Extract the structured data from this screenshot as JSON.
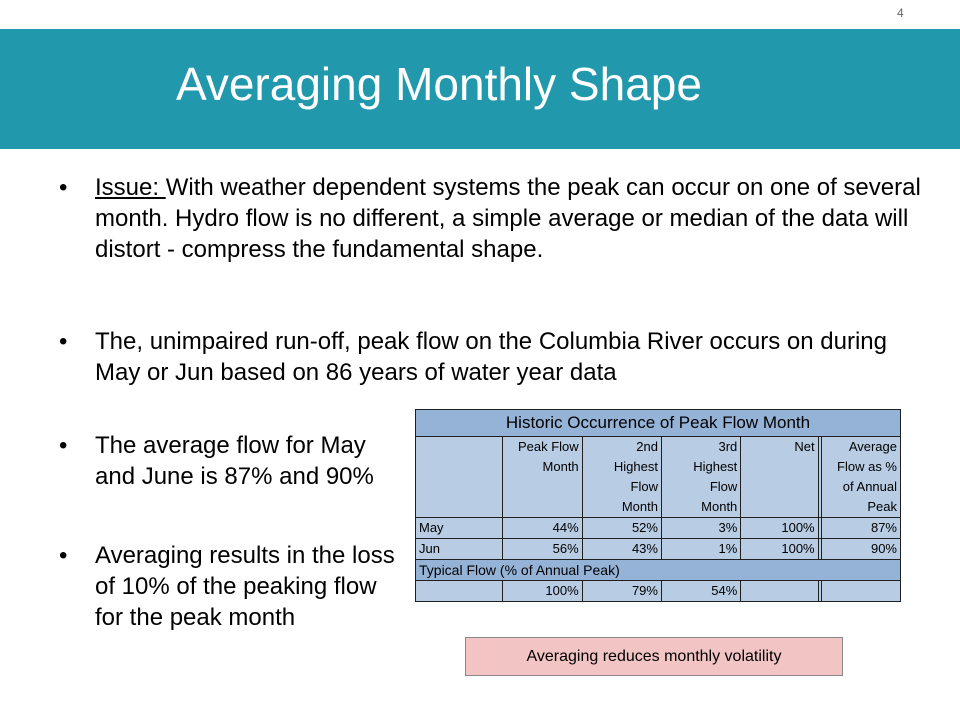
{
  "slide_number": "4",
  "title": "Averaging Monthly Shape",
  "bullets": {
    "b1_label": "Issue: ",
    "b1_text": "With weather dependent systems the peak can occur on one of several month. Hydro flow is no different, a simple average or median of the data will distort - compress the fundamental shape.",
    "b2_text": "The, unimpaired run-off, peak flow on the Columbia River occurs on during May or Jun based on 86 years of water year data",
    "b3_text": "The average flow for May and June is 87% and 90%",
    "b4_text": "Averaging results in the loss of 10% of the peaking flow for the peak month"
  },
  "table": {
    "title": "Historic Occurrence of Peak Flow Month",
    "headers": [
      [
        "Peak Flow",
        "Month",
        "",
        ""
      ],
      [
        "2nd",
        "Highest",
        "Flow",
        "Month"
      ],
      [
        "3rd",
        "Highest",
        "Flow",
        "Month"
      ],
      [
        "Net",
        "",
        "",
        ""
      ],
      [
        "Average",
        "Flow as %",
        "of Annual",
        "Peak"
      ]
    ],
    "rows": [
      {
        "label": "May",
        "values": [
          "44%",
          "52%",
          "3%",
          "100%",
          "87%"
        ]
      },
      {
        "label": "Jun",
        "values": [
          "56%",
          "43%",
          "1%",
          "100%",
          "90%"
        ]
      }
    ],
    "section_label": "Typical Flow (% of Annual Peak)",
    "typical_values": [
      "100%",
      "79%",
      "54%",
      "",
      ""
    ]
  },
  "callout": "Averaging reduces monthly volatility"
}
